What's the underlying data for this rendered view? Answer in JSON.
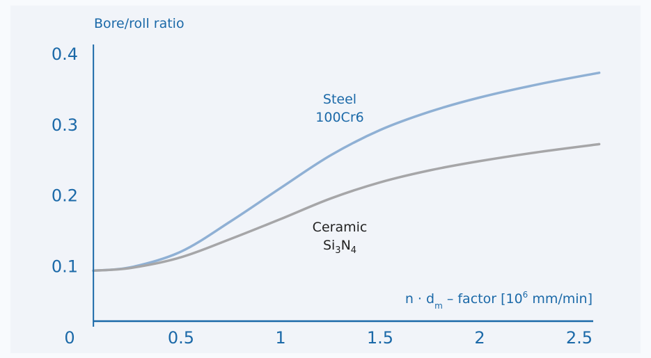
{
  "chart_data": {
    "type": "line",
    "ylabel": "Bore/roll ratio",
    "xlabel": "n · d_m – factor [10^6 mm/min]",
    "xlabel_parts": {
      "pre": "n · d",
      "sub": "m",
      "mid": " – factor [10",
      "sup": "6",
      "post": " mm/min]"
    },
    "xlim": [
      0,
      2.6
    ],
    "ylim": [
      0,
      0.4
    ],
    "x_ticks": [
      "0.5",
      "1",
      "1.5",
      "2",
      "2.5"
    ],
    "x_tick_values": [
      0.5,
      1,
      1.5,
      2,
      2.5
    ],
    "y_ticks": [
      "0.1",
      "0.2",
      "0.3",
      "0.4"
    ],
    "y_tick_values": [
      0.1,
      0.2,
      0.3,
      0.4
    ],
    "origin_label": "0",
    "grid": false,
    "series": [
      {
        "name": "Steel 100Cr6",
        "label_lines": [
          "Steel",
          "100Cr6"
        ],
        "color": "#8fb0d4",
        "label_color": "#1b69a8",
        "x": [
          0.06,
          0.25,
          0.5,
          0.75,
          1.0,
          1.25,
          1.5,
          1.75,
          2.0,
          2.3,
          2.6
        ],
        "y": [
          0.093,
          0.098,
          0.12,
          0.163,
          0.21,
          0.256,
          0.292,
          0.318,
          0.338,
          0.357,
          0.373
        ]
      },
      {
        "name": "Ceramic Si3N4",
        "label_lines": [
          "Ceramic",
          "Si",
          "3",
          "N",
          "4"
        ],
        "color": "#a6a6a8",
        "label_color": "#222222",
        "x": [
          0.06,
          0.25,
          0.5,
          0.75,
          1.0,
          1.25,
          1.5,
          1.75,
          2.0,
          2.3,
          2.6
        ],
        "y": [
          0.093,
          0.097,
          0.112,
          0.138,
          0.166,
          0.195,
          0.218,
          0.235,
          0.248,
          0.261,
          0.272
        ]
      }
    ]
  }
}
